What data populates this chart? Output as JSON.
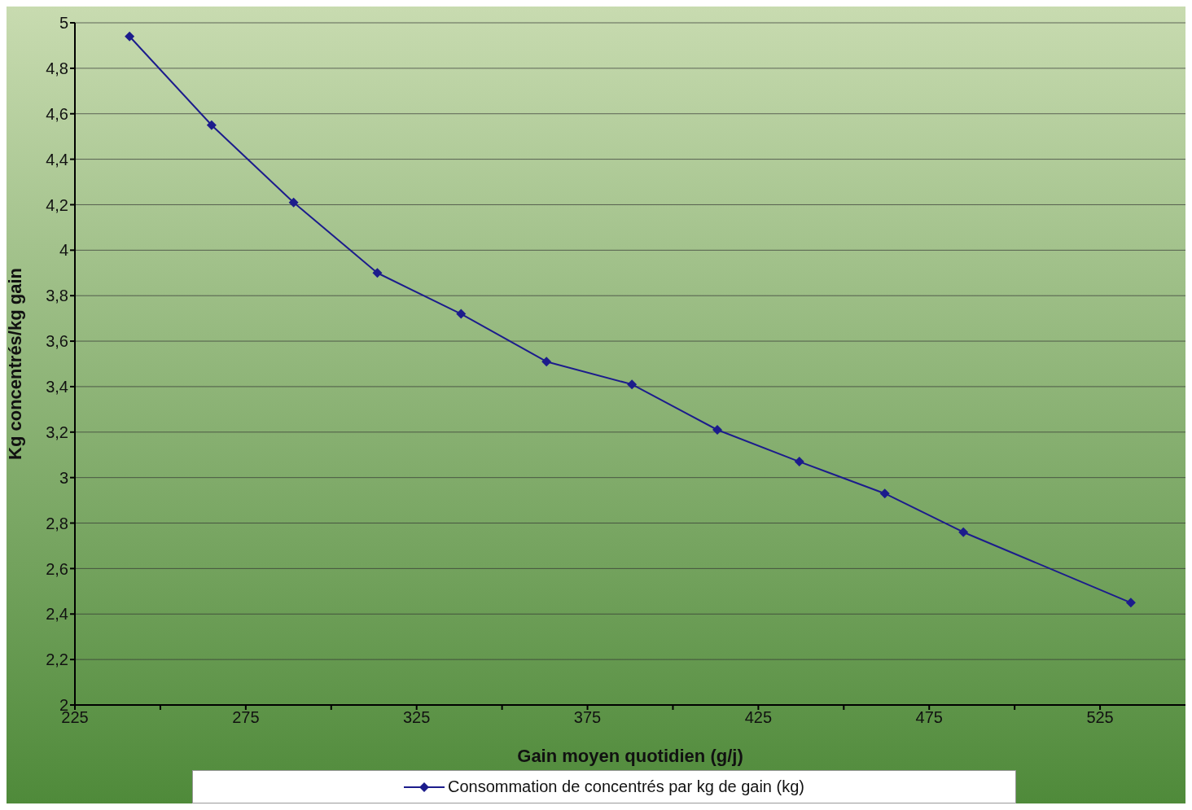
{
  "chart_data": {
    "type": "line",
    "xlabel": "Gain moyen quotidien (g/j)",
    "ylabel": "Kg concentrés/kg gain",
    "x": [
      241,
      265,
      289,
      313.5,
      338,
      363,
      388,
      413,
      437,
      462,
      485,
      534
    ],
    "series": [
      {
        "name": "Consommation de concentrés par kg de gain (kg)",
        "color": "#1c1c8c",
        "values": [
          4.94,
          4.55,
          4.21,
          3.9,
          3.72,
          3.51,
          3.41,
          3.21,
          3.07,
          2.93,
          2.76,
          2.45
        ]
      }
    ],
    "xlim": [
      225,
      550
    ],
    "xticks": [
      225,
      {
        "value": 250,
        "label": null
      },
      275,
      {
        "value": 300,
        "label": null
      },
      325,
      {
        "value": 350,
        "label": null
      },
      375,
      {
        "value": 400,
        "label": null
      },
      425,
      {
        "value": 450,
        "label": null
      },
      475,
      {
        "value": 500,
        "label": null
      },
      525
    ],
    "ylim": [
      2,
      5
    ],
    "yticks": [
      2,
      {
        "value": 2.2,
        "label": "2,2"
      },
      {
        "value": 2.4,
        "label": "2,4"
      },
      {
        "value": 2.6,
        "label": "2,6"
      },
      {
        "value": 2.8,
        "label": "2,8"
      },
      3,
      {
        "value": 3.2,
        "label": "3,2"
      },
      {
        "value": 3.4,
        "label": "3,4"
      },
      {
        "value": 3.6,
        "label": "3,6"
      },
      {
        "value": 3.8,
        "label": "3,8"
      },
      4,
      {
        "value": 4.2,
        "label": "4,2"
      },
      {
        "value": 4.4,
        "label": "4,4"
      },
      {
        "value": 4.6,
        "label": "4,6"
      },
      {
        "value": 4.8,
        "label": "4,8"
      },
      5
    ],
    "grid": "y",
    "legend": "bottom",
    "marker": "diamond",
    "line_style": "solid"
  }
}
